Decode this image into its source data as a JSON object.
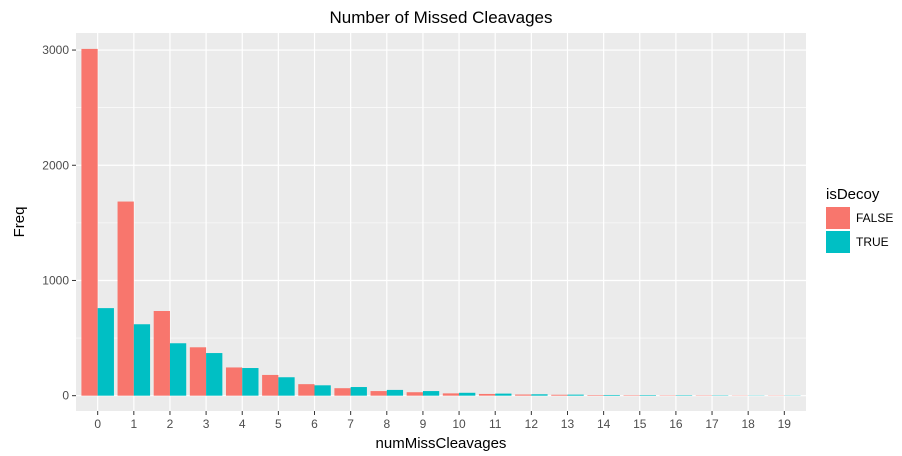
{
  "chart_data": {
    "type": "bar",
    "title": "Number of Missed Cleavages",
    "xlabel": "numMissCleavages",
    "ylabel": "Freq",
    "categories": [
      "0",
      "1",
      "2",
      "3",
      "4",
      "5",
      "6",
      "7",
      "8",
      "9",
      "10",
      "11",
      "12",
      "13",
      "14",
      "15",
      "16",
      "17",
      "18",
      "19"
    ],
    "series": [
      {
        "name": "FALSE",
        "color": "#F8766D",
        "values": [
          3010,
          1685,
          735,
          420,
          245,
          180,
          100,
          65,
          40,
          30,
          20,
          15,
          10,
          8,
          5,
          4,
          3,
          3,
          2,
          2
        ]
      },
      {
        "name": "TRUE",
        "color": "#00BFC4",
        "values": [
          760,
          620,
          455,
          370,
          240,
          160,
          90,
          75,
          50,
          40,
          25,
          18,
          12,
          9,
          6,
          5,
          4,
          3,
          2,
          2
        ]
      }
    ],
    "ylim": [
      -133,
      3148
    ],
    "yticks": [
      0,
      1000,
      2000,
      3000
    ],
    "grid": true,
    "legend": {
      "title": "isDecoy",
      "placement": "right",
      "entries": [
        "FALSE",
        "TRUE"
      ]
    }
  }
}
